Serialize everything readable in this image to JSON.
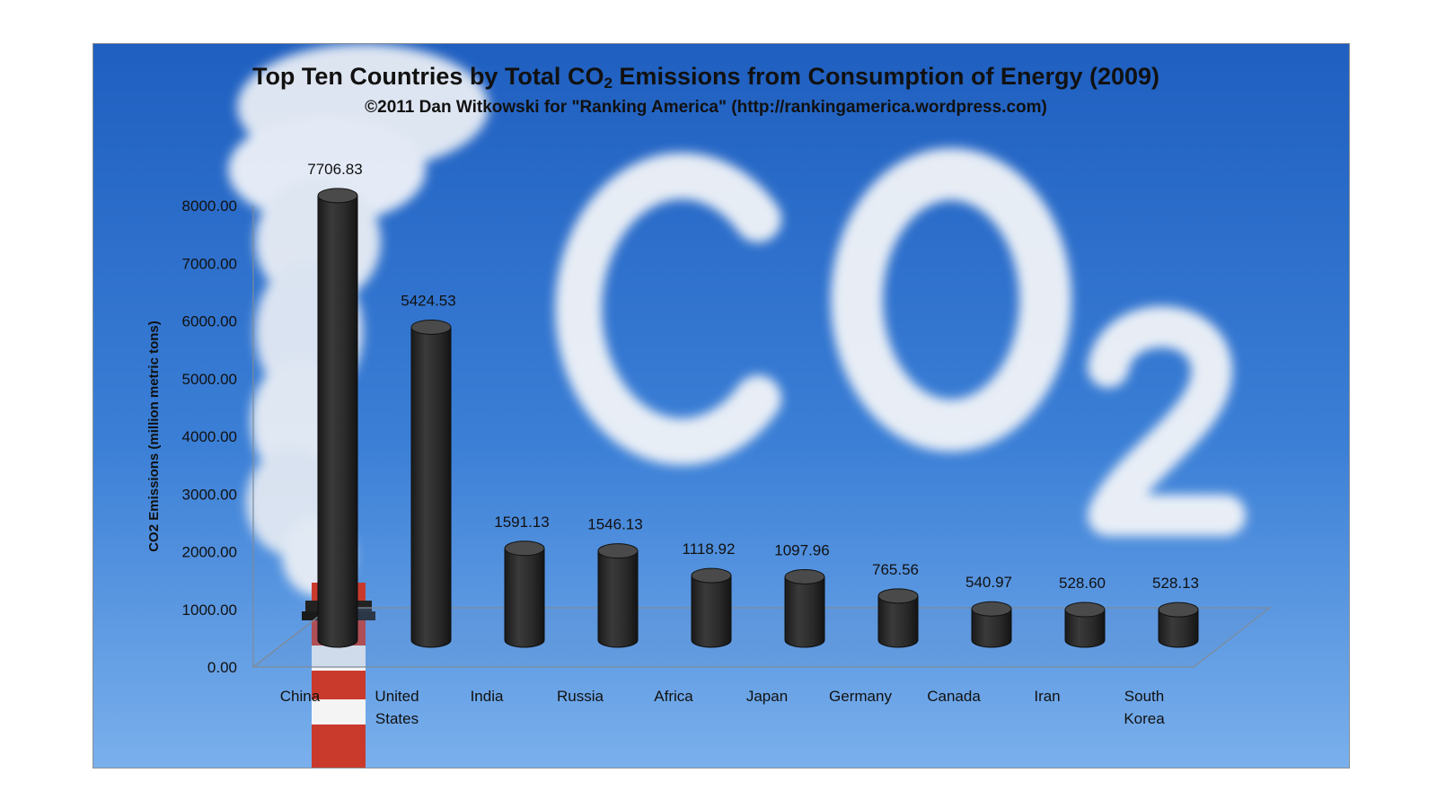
{
  "colors": {
    "sky_top": "#1f5fc0",
    "sky_bottom": "#6ea6e8",
    "bar_fill": "#2b2b2b",
    "bar_top": "#474747",
    "text": "#111111",
    "cloud": "#f4f4f6",
    "chimney_red": "#cc3d2e"
  },
  "decoration": {
    "background_lettering": "CO2",
    "chimney_icon": "smokestack-icon"
  },
  "chart_data": {
    "type": "bar",
    "title_main": "Top Ten Countries by Total CO",
    "title_sub_2": "2",
    "title_rest": " Emissions from Consumption of Energy (2009)",
    "subtitle": "©2011 Dan Witkowski for \"Ranking America\" (http://rankingamerica.wordpress.com)",
    "ylabel": "CO2 Emissions (million metric tons)",
    "xlabel": "",
    "ylim": [
      0,
      8000
    ],
    "yticks": [
      "0.00",
      "1000.00",
      "2000.00",
      "3000.00",
      "4000.00",
      "5000.00",
      "6000.00",
      "7000.00",
      "8000.00"
    ],
    "categories": [
      [
        "China"
      ],
      [
        "United",
        "States"
      ],
      [
        "India"
      ],
      [
        "Russia"
      ],
      [
        "Africa"
      ],
      [
        "Japan"
      ],
      [
        "Germany"
      ],
      [
        "Canada"
      ],
      [
        "Iran"
      ],
      [
        "South",
        "Korea"
      ]
    ],
    "values": [
      7706.83,
      5424.53,
      1591.13,
      1546.13,
      1118.92,
      1097.96,
      765.56,
      540.97,
      528.6,
      528.13
    ],
    "value_labels": [
      "7706.83",
      "5424.53",
      "1591.13",
      "1546.13",
      "1118.92",
      "1097.96",
      "765.56",
      "540.97",
      "528.60",
      "528.13"
    ],
    "grid": false,
    "legend": "none"
  }
}
